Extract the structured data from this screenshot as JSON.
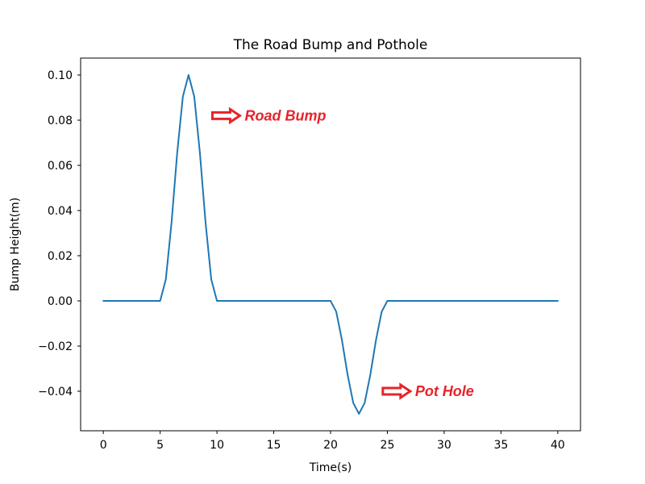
{
  "chart_data": {
    "type": "line",
    "title": "The Road Bump and Pothole",
    "xlabel": "Time(s)",
    "ylabel": "Bump Height(m)",
    "xlim": [
      -2,
      42
    ],
    "ylim": [
      -0.0575,
      0.1075
    ],
    "xticks": [
      0,
      5,
      10,
      15,
      20,
      25,
      30,
      35,
      40
    ],
    "yticks": [
      -0.04,
      -0.02,
      0.0,
      0.02,
      0.04,
      0.06,
      0.08,
      0.1
    ],
    "xtick_labels": [
      "0",
      "5",
      "10",
      "15",
      "20",
      "25",
      "30",
      "35",
      "40"
    ],
    "ytick_labels": [
      "−0.04",
      "−0.02",
      "0.00",
      "0.02",
      "0.04",
      "0.06",
      "0.08",
      "0.10"
    ],
    "grid": false,
    "line_color": "#1f77b4",
    "annotation_color": "#e8232a",
    "series": [
      {
        "x": [
          0,
          5,
          5.5,
          6,
          6.5,
          7,
          7.5,
          8,
          8.5,
          9,
          9.5,
          10,
          20,
          20.5,
          21,
          21.5,
          22,
          22.5,
          23,
          23.5,
          24,
          24.5,
          25,
          40
        ],
        "y": [
          0,
          0,
          0.0095,
          0.0345,
          0.0655,
          0.0905,
          0.1,
          0.0905,
          0.0655,
          0.0345,
          0.0095,
          0,
          0,
          -0.0048,
          -0.0173,
          -0.0327,
          -0.0452,
          -0.05,
          -0.0452,
          -0.0327,
          -0.0173,
          -0.0048,
          0,
          0
        ]
      }
    ],
    "annotations": [
      {
        "text": "Road Bump",
        "x": 9.6,
        "y": 0.082
      },
      {
        "text": "Pot Hole",
        "x": 24.6,
        "y": -0.04
      }
    ]
  }
}
